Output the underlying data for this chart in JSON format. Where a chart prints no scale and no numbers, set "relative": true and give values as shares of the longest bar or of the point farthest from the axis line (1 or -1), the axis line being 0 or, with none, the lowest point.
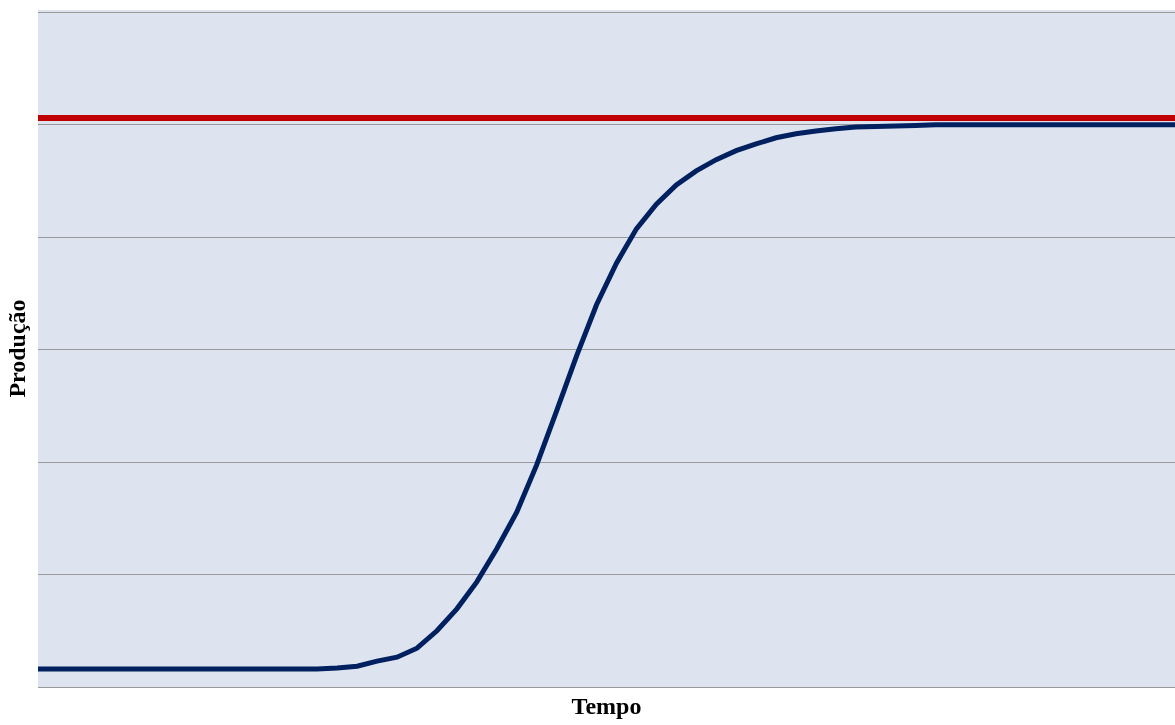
{
  "chart_data": {
    "type": "line",
    "relative": true,
    "xlabel": "Tempo",
    "ylabel": "Produção",
    "grid": "y",
    "legend": false,
    "marker": "none",
    "line_style": "solid",
    "categories": [
      null,
      null,
      null,
      null,
      null,
      null,
      null,
      null,
      null,
      null,
      null,
      null,
      null,
      null,
      null,
      null,
      null,
      null,
      null,
      null,
      null,
      null,
      null,
      null,
      null,
      null,
      null,
      null,
      null,
      null,
      null,
      null,
      null,
      null,
      null,
      null,
      null,
      null,
      null,
      null,
      null,
      null,
      null,
      null,
      null,
      null,
      null,
      null,
      null,
      null,
      null,
      null,
      null,
      null,
      null,
      null,
      null,
      null
    ],
    "series": [
      {
        "color": "#002060",
        "values": [
          0.032,
          0.032,
          0.032,
          0.032,
          0.032,
          0.032,
          0.032,
          0.032,
          0.032,
          0.032,
          0.032,
          0.032,
          0.032,
          0.032,
          0.032,
          0.034,
          0.037,
          0.046,
          0.053,
          0.069,
          0.1,
          0.139,
          0.187,
          0.246,
          0.311,
          0.395,
          0.491,
          0.589,
          0.68,
          0.754,
          0.815,
          0.859,
          0.893,
          0.918,
          0.938,
          0.954,
          0.966,
          0.977,
          0.984,
          0.989,
          0.993,
          0.996,
          0.997,
          0.998,
          0.999,
          1,
          1,
          1,
          1,
          1,
          1,
          1,
          1,
          1,
          1,
          1,
          1,
          1
        ]
      }
    ],
    "ref_lines": [
      {
        "axis": "y",
        "value": 1.012,
        "color": "#c00000",
        "line_style": "solid"
      }
    ]
  }
}
